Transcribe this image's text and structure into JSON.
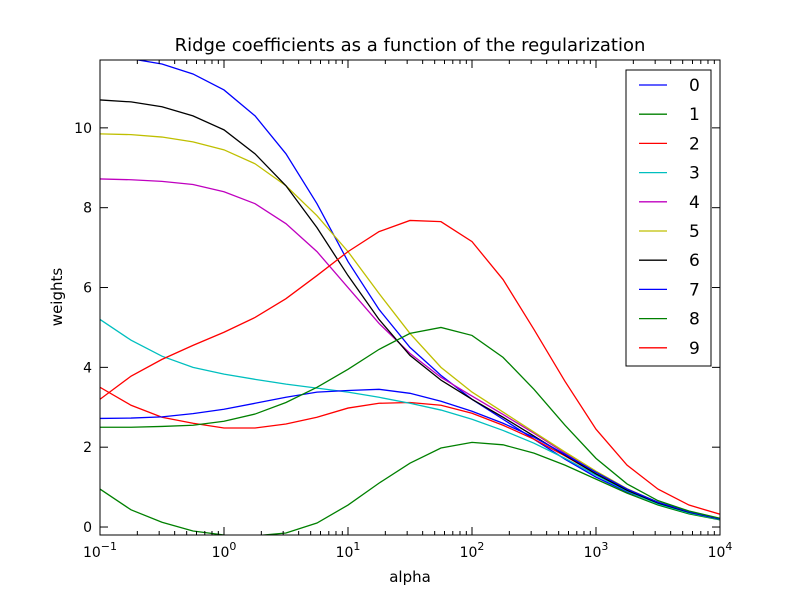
{
  "chart_data": {
    "type": "line",
    "title": "Ridge coefficients as a function of the regularization",
    "xlabel": "alpha",
    "ylabel": "weights",
    "xscale": "log",
    "xlim": [
      0.1,
      10000
    ],
    "ylim": [
      -0.2,
      11.7
    ],
    "grid": false,
    "legend_position": "top-right",
    "x_ticks": [
      {
        "value": 0.1,
        "base": "10",
        "exp": "−1"
      },
      {
        "value": 1,
        "base": "10",
        "exp": "0"
      },
      {
        "value": 10,
        "base": "10",
        "exp": "1"
      },
      {
        "value": 100,
        "base": "10",
        "exp": "2"
      },
      {
        "value": 1000,
        "base": "10",
        "exp": "3"
      },
      {
        "value": 10000,
        "base": "10",
        "exp": "4"
      }
    ],
    "y_ticks": [
      0,
      2,
      4,
      6,
      8,
      10
    ],
    "x": [
      0.1,
      0.178,
      0.316,
      0.562,
      1.0,
      1.78,
      3.16,
      5.62,
      10.0,
      17.8,
      31.6,
      56.2,
      100,
      178,
      316,
      562,
      1000,
      1780,
      3160,
      5620,
      10000
    ],
    "series": [
      {
        "name": "0",
        "color": "#0000ff",
        "values": [
          11.75,
          11.73,
          11.6,
          11.35,
          10.95,
          10.3,
          9.35,
          8.1,
          6.65,
          5.45,
          4.5,
          3.8,
          3.2,
          2.7,
          2.2,
          1.7,
          1.25,
          0.88,
          0.6,
          0.38,
          0.2
        ]
      },
      {
        "name": "1",
        "color": "#008000",
        "values": [
          0.95,
          0.43,
          0.12,
          -0.1,
          -0.2,
          -0.22,
          -0.15,
          0.1,
          0.55,
          1.1,
          1.6,
          1.98,
          2.12,
          2.06,
          1.85,
          1.55,
          1.2,
          0.85,
          0.55,
          0.33,
          0.18
        ]
      },
      {
        "name": "2",
        "color": "#ff0000",
        "values": [
          3.5,
          3.05,
          2.75,
          2.6,
          2.48,
          2.48,
          2.58,
          2.75,
          2.98,
          3.1,
          3.12,
          3.05,
          2.85,
          2.55,
          2.2,
          1.78,
          1.33,
          0.92,
          0.6,
          0.36,
          0.2
        ]
      },
      {
        "name": "3",
        "color": "#00bfbf",
        "values": [
          5.2,
          4.68,
          4.28,
          4.0,
          3.83,
          3.7,
          3.58,
          3.48,
          3.38,
          3.25,
          3.1,
          2.93,
          2.7,
          2.42,
          2.1,
          1.72,
          1.3,
          0.9,
          0.58,
          0.35,
          0.19
        ]
      },
      {
        "name": "4",
        "color": "#bf00bf",
        "values": [
          8.72,
          8.7,
          8.66,
          8.58,
          8.4,
          8.1,
          7.6,
          6.9,
          6.0,
          5.1,
          4.35,
          3.75,
          3.28,
          2.82,
          2.35,
          1.85,
          1.38,
          0.95,
          0.62,
          0.38,
          0.2
        ]
      },
      {
        "name": "5",
        "color": "#bfbf00",
        "values": [
          9.85,
          9.83,
          9.77,
          9.65,
          9.45,
          9.1,
          8.55,
          7.8,
          6.9,
          5.85,
          4.85,
          4.0,
          3.38,
          2.88,
          2.38,
          1.88,
          1.4,
          0.96,
          0.62,
          0.38,
          0.2
        ]
      },
      {
        "name": "6",
        "color": "#000000",
        "values": [
          10.7,
          10.65,
          10.53,
          10.3,
          9.95,
          9.35,
          8.55,
          7.5,
          6.3,
          5.2,
          4.3,
          3.68,
          3.2,
          2.75,
          2.28,
          1.8,
          1.33,
          0.92,
          0.6,
          0.37,
          0.2
        ]
      },
      {
        "name": "7",
        "color": "#0000ff",
        "values": [
          2.72,
          2.73,
          2.76,
          2.84,
          2.95,
          3.1,
          3.25,
          3.38,
          3.42,
          3.45,
          3.35,
          3.15,
          2.9,
          2.6,
          2.25,
          1.82,
          1.37,
          0.95,
          0.62,
          0.38,
          0.2
        ]
      },
      {
        "name": "8",
        "color": "#008000",
        "values": [
          2.5,
          2.5,
          2.52,
          2.55,
          2.65,
          2.83,
          3.12,
          3.5,
          3.95,
          4.45,
          4.85,
          5.0,
          4.8,
          4.25,
          3.45,
          2.55,
          1.72,
          1.08,
          0.66,
          0.4,
          0.22
        ]
      },
      {
        "name": "9",
        "color": "#ff0000",
        "values": [
          3.2,
          3.78,
          4.2,
          4.55,
          4.88,
          5.25,
          5.72,
          6.3,
          6.9,
          7.4,
          7.68,
          7.65,
          7.15,
          6.2,
          4.95,
          3.65,
          2.45,
          1.55,
          0.95,
          0.55,
          0.32
        ]
      }
    ]
  }
}
